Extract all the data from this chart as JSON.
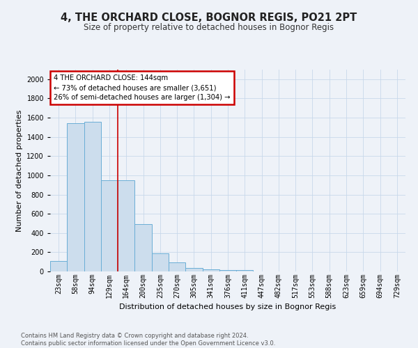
{
  "title": "4, THE ORCHARD CLOSE, BOGNOR REGIS, PO21 2PT",
  "subtitle": "Size of property relative to detached houses in Bognor Regis",
  "xlabel": "Distribution of detached houses by size in Bognor Regis",
  "ylabel": "Number of detached properties",
  "categories": [
    "23sqm",
    "58sqm",
    "94sqm",
    "129sqm",
    "164sqm",
    "200sqm",
    "235sqm",
    "270sqm",
    "305sqm",
    "341sqm",
    "376sqm",
    "411sqm",
    "447sqm",
    "482sqm",
    "517sqm",
    "553sqm",
    "588sqm",
    "623sqm",
    "659sqm",
    "694sqm",
    "729sqm"
  ],
  "values": [
    110,
    1540,
    1560,
    950,
    950,
    490,
    185,
    95,
    38,
    25,
    18,
    18,
    0,
    0,
    0,
    0,
    0,
    0,
    0,
    0,
    0
  ],
  "bar_color": "#ccdded",
  "bar_edge_color": "#6aaed6",
  "grid_color": "#c8d8ea",
  "annotation_box_text": "4 THE ORCHARD CLOSE: 144sqm\n← 73% of detached houses are smaller (3,651)\n26% of semi-detached houses are larger (1,304) →",
  "annotation_box_color": "#ffffff",
  "annotation_box_edge_color": "#cc0000",
  "vline_color": "#cc0000",
  "vline_x": 3.5,
  "ylim": [
    0,
    2100
  ],
  "yticks": [
    0,
    200,
    400,
    600,
    800,
    1000,
    1200,
    1400,
    1600,
    1800,
    2000
  ],
  "footer": "Contains HM Land Registry data © Crown copyright and database right 2024.\nContains public sector information licensed under the Open Government Licence v3.0.",
  "title_fontsize": 10.5,
  "subtitle_fontsize": 8.5,
  "ylabel_fontsize": 8,
  "xlabel_fontsize": 8,
  "tick_fontsize": 7,
  "footer_fontsize": 6,
  "bg_color": "#eef2f8"
}
